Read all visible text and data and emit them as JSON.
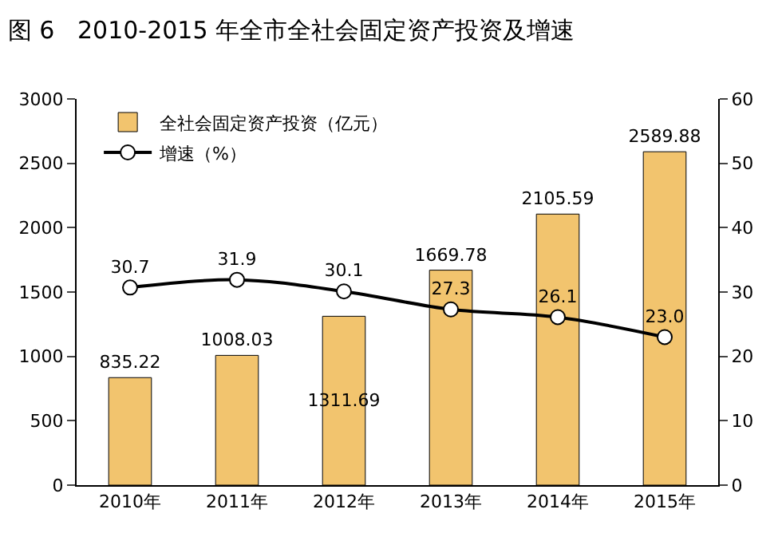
{
  "chart_data": {
    "type": "bar",
    "title": "图 6   2010-2015 年全市全社会固定资产投资及增速",
    "categories": [
      "2010年",
      "2011年",
      "2012年",
      "2013年",
      "2014年",
      "2015年"
    ],
    "series": [
      {
        "name": "全社会固定资产投资（亿元）",
        "color": "#f2c46e",
        "values": [
          835.22,
          1008.03,
          1311.69,
          1669.78,
          2105.59,
          2589.88
        ]
      },
      {
        "name": "增速（%）",
        "type": "line",
        "axis": "y2",
        "color": "#000000",
        "marker": "circle",
        "line_style": "solid",
        "values": [
          30.7,
          31.9,
          30.1,
          27.3,
          26.1,
          23.0
        ],
        "value_labels": [
          "30.7",
          "31.9",
          "30.1",
          "27.3",
          "26.1",
          "23.0"
        ]
      }
    ],
    "ylim": [
      0,
      3000
    ],
    "yticks": [
      0,
      500,
      1000,
      1500,
      2000,
      2500,
      3000
    ],
    "y2lim": [
      0,
      60
    ],
    "y2ticks": [
      0,
      10,
      20,
      30,
      40,
      50,
      60
    ],
    "data_labels": true,
    "legend": "top left"
  }
}
